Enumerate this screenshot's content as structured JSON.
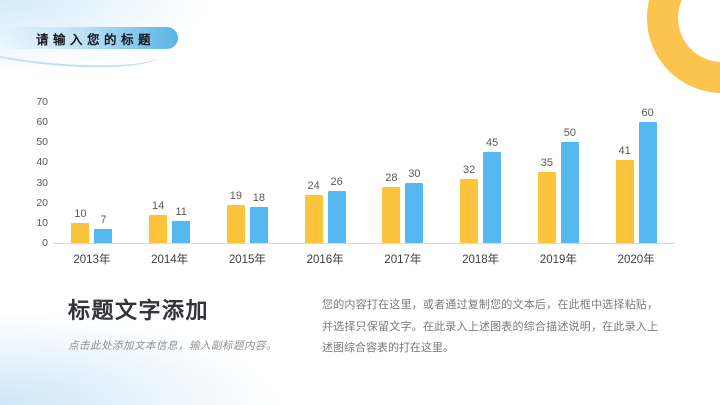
{
  "header": {
    "title": "请输入您的标题"
  },
  "chart_data": {
    "type": "bar",
    "categories": [
      "2013年",
      "2014年",
      "2015年",
      "2016年",
      "2017年",
      "2018年",
      "2019年",
      "2020年"
    ],
    "series": [
      {
        "name": "yellow",
        "color": "#FCC33C",
        "values": [
          10,
          14,
          19,
          24,
          28,
          32,
          35,
          41
        ]
      },
      {
        "name": "blue",
        "color": "#55B8F0",
        "values": [
          7,
          11,
          18,
          26,
          30,
          45,
          50,
          60
        ]
      }
    ],
    "title": "",
    "xlabel": "",
    "ylabel": "",
    "ylim": [
      0,
      70
    ],
    "yticks": [
      0,
      10,
      20,
      30,
      40,
      50,
      60,
      70
    ],
    "grid": false,
    "legend": "none",
    "value_labels": true
  },
  "text_block": {
    "heading": "标题文字添加",
    "subheading": "点击此处添加文本信息，输入副标题内容。",
    "paragraph": "您的内容打在这里，或者通过复制您的文本后，在此框中选择粘贴，并选择只保留文字。在此录入上述图表的综合描述说明，在此录入上述图综合容表的打在这里。"
  },
  "decor": {
    "ring_color": "#FBC44C",
    "pill_accent_blue": "#58B5E6",
    "corner_tint_blue": "#CBE5F8",
    "axis_line_color": "#D9D9D9",
    "label_gray": "#595959"
  }
}
